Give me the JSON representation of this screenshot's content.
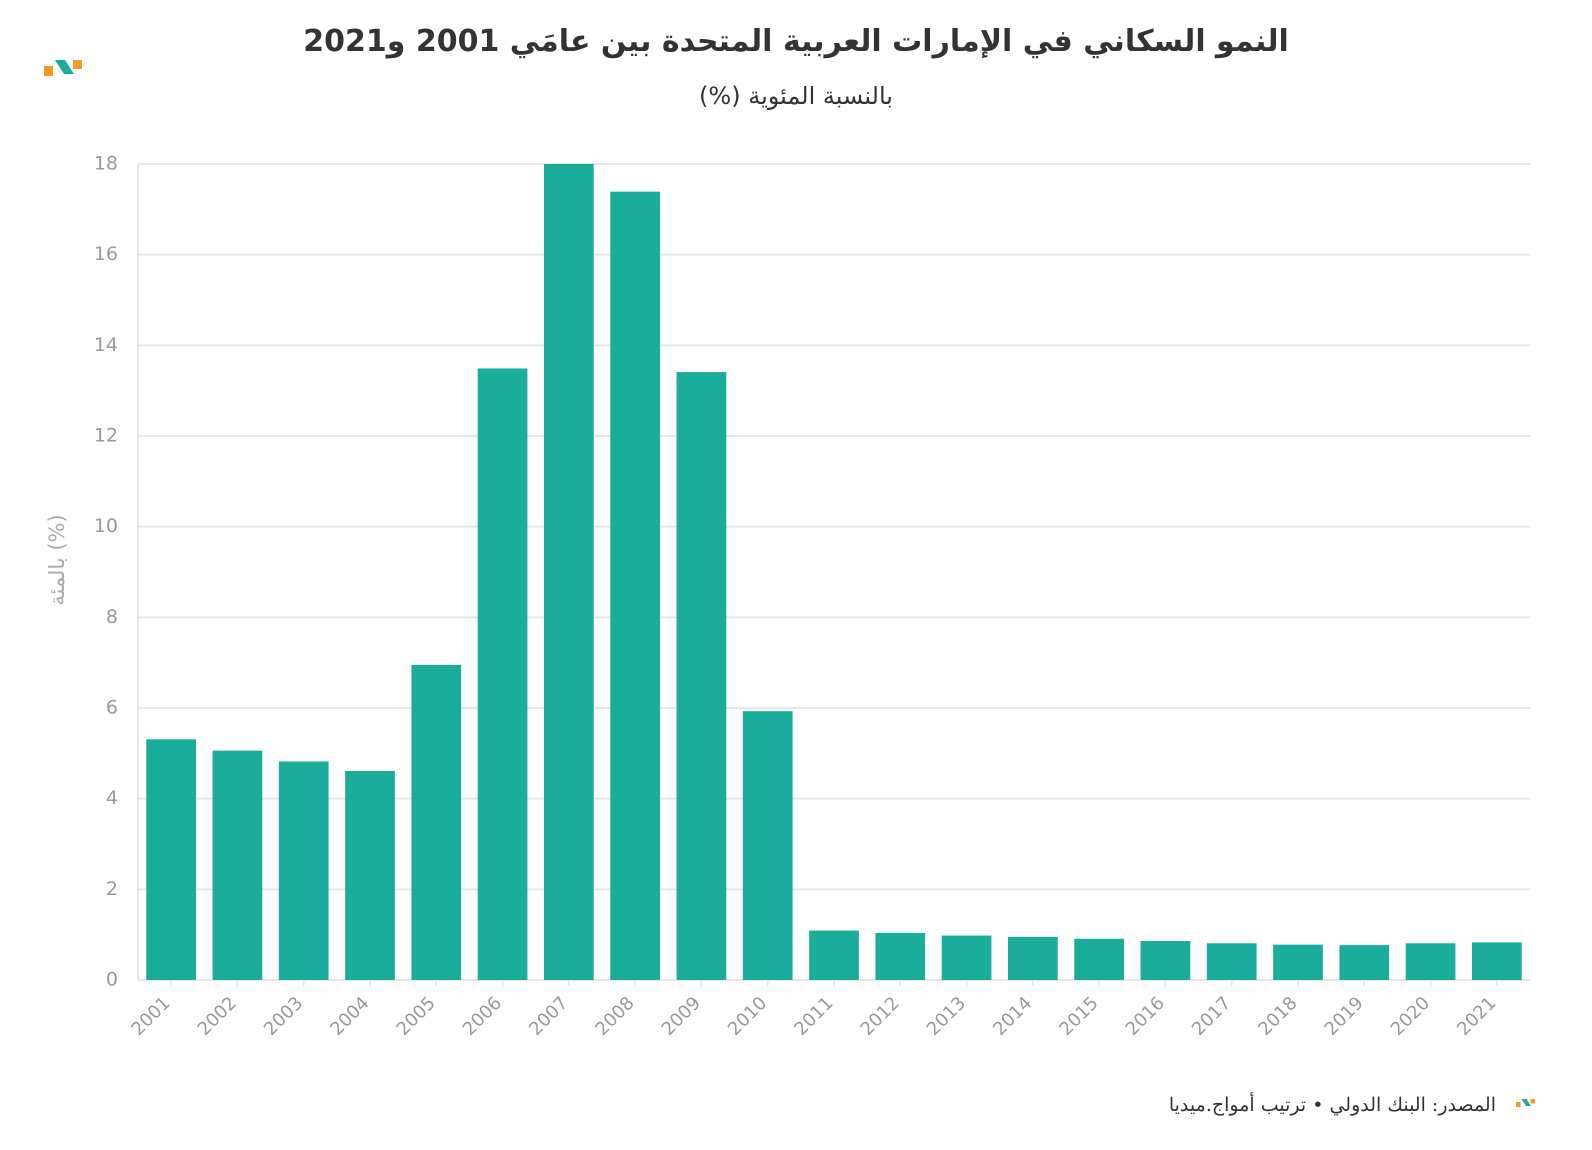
{
  "colors": {
    "bar": "#1aad9b",
    "grid": "#e6e6e6",
    "axis_text": "#999999",
    "text": "#333333",
    "logo_orange": "#f59a23",
    "logo_teal": "#1aad9b"
  },
  "icons": {
    "brand_logo": "awmaj-logo-icon",
    "footer_logo": "awmaj-logo-icon"
  },
  "footer": {
    "source": "المصدر: البنك الدولي • ترتيب أمواج.ميديا"
  },
  "chart_data": {
    "type": "bar",
    "title": "النمو السكاني في الإمارات العربية المتحدة بين عامَي 2001 و2021",
    "subtitle": "بالنسبة المئوية (%)",
    "xlabel": "",
    "ylabel": "بالمئة (%)",
    "ylim": [
      0,
      18
    ],
    "yticks": [
      "0",
      "2",
      "4",
      "6",
      "8",
      "10",
      "12",
      "14",
      "16",
      "18"
    ],
    "grid": true,
    "categories": [
      "2001",
      "2002",
      "2003",
      "2004",
      "2005",
      "2006",
      "2007",
      "2008",
      "2009",
      "2010",
      "2011",
      "2012",
      "2013",
      "2014",
      "2015",
      "2016",
      "2017",
      "2018",
      "2019",
      "2020",
      "2021"
    ],
    "values": [
      5.31,
      5.06,
      4.82,
      4.61,
      6.95,
      13.49,
      18.0,
      17.39,
      13.41,
      5.93,
      1.09,
      1.04,
      0.98,
      0.95,
      0.91,
      0.86,
      0.81,
      0.78,
      0.77,
      0.81,
      0.83
    ]
  }
}
